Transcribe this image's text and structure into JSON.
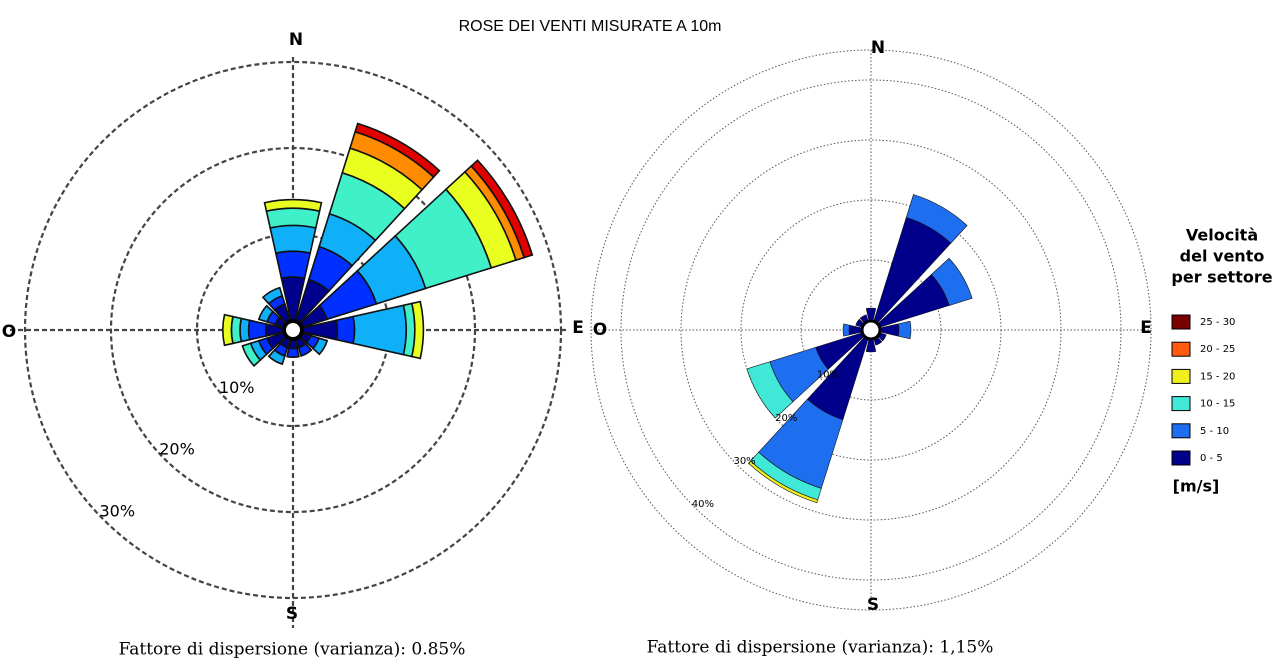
{
  "title": "ROSE DEI VENTI MISURATE A 10m",
  "chart_data": [
    {
      "type": "wind_rose",
      "cardinal_labels": [
        "N",
        "E",
        "S",
        "O"
      ],
      "x": [
        0,
        30,
        60,
        90,
        120,
        150,
        180,
        210,
        240,
        270,
        300,
        330
      ],
      "xlim": [
        0,
        360
      ],
      "ylim": [
        0,
        30
      ],
      "yticks": [
        {
          "value": 10,
          "label": "10%"
        },
        {
          "value": 20,
          "label": "20%"
        },
        {
          "value": 30,
          "label": "30%"
        }
      ],
      "grid": true,
      "grid_style": "dashed",
      "series": [
        {
          "color": "#00008f",
          "values": [
            5,
            5,
            3,
            4,
            1,
            1,
            1,
            1,
            2,
            2,
            1,
            2
          ]
        },
        {
          "color": "#0030ff",
          "values": [
            3,
            4,
            6,
            2,
            1,
            1,
            1,
            1,
            1,
            2,
            1,
            1
          ]
        },
        {
          "color": "#10b0f8",
          "values": [
            3,
            4,
            6,
            6,
            1,
            0,
            0,
            1,
            1,
            1,
            1,
            1
          ]
        },
        {
          "color": "#40f0c8",
          "values": [
            2,
            5,
            8,
            1,
            0,
            0,
            0,
            0,
            1,
            1,
            0,
            0
          ]
        },
        {
          "color": "#e8ff20",
          "values": [
            1,
            3,
            3,
            1,
            0,
            0,
            0,
            0,
            0,
            1,
            0,
            0
          ]
        },
        {
          "color": "#ff8c00",
          "values": [
            0,
            2,
            1,
            0,
            0,
            0,
            0,
            0,
            0,
            0,
            0,
            0
          ]
        },
        {
          "color": "#e00000",
          "values": [
            0,
            1,
            1,
            0,
            0,
            0,
            0,
            0,
            0,
            0,
            0,
            0
          ]
        }
      ],
      "caption": "Fattore di dispersione (varianza): 0.85%"
    },
    {
      "type": "wind_rose",
      "cardinal_labels": [
        "N",
        "E",
        "S",
        "O"
      ],
      "x": [
        0,
        30,
        60,
        90,
        120,
        150,
        180,
        210,
        240,
        270,
        300,
        330
      ],
      "xlim": [
        0,
        360
      ],
      "ylim": [
        0,
        45
      ],
      "yticks": [
        {
          "value": 10,
          "label": "10%"
        },
        {
          "value": 20,
          "label": "20%"
        },
        {
          "value": 30,
          "label": "30%"
        },
        {
          "value": 40,
          "label": "40%"
        }
      ],
      "grid": true,
      "grid_style": "dotted",
      "legend_title": [
        "Velocità",
        "del vento",
        "per settore"
      ],
      "legend_unit": "[m/s]",
      "series": [
        {
          "name": "0 - 5",
          "color": "#00008b",
          "values": [
            2,
            18,
            12,
            3,
            1,
            1,
            2,
            14,
            8,
            2,
            1,
            1
          ]
        },
        {
          "name": "5 - 10",
          "color": "#1e6ef0",
          "values": [
            0,
            4,
            4,
            2,
            0,
            0,
            0,
            12,
            8,
            1,
            0,
            0
          ]
        },
        {
          "name": "10 - 15",
          "color": "#40e8d8",
          "values": [
            0,
            0,
            0,
            0,
            0,
            0,
            0,
            2,
            4,
            0,
            0,
            0
          ]
        },
        {
          "name": "15 - 20",
          "color": "#f0f020",
          "values": [
            0,
            0,
            0,
            0,
            0,
            0,
            0,
            0.5,
            0,
            0,
            0,
            0
          ]
        },
        {
          "name": "20 - 25",
          "color": "#ff5a10",
          "values": [
            0,
            0,
            0,
            0,
            0,
            0,
            0,
            0,
            0,
            0,
            0,
            0
          ]
        },
        {
          "name": "25 - 30",
          "color": "#7a0000",
          "values": [
            0,
            0,
            0,
            0,
            0,
            0,
            0,
            0,
            0,
            0,
            0,
            0
          ]
        }
      ],
      "caption": "Fattore di dispersione (varianza): 1,15%"
    }
  ]
}
